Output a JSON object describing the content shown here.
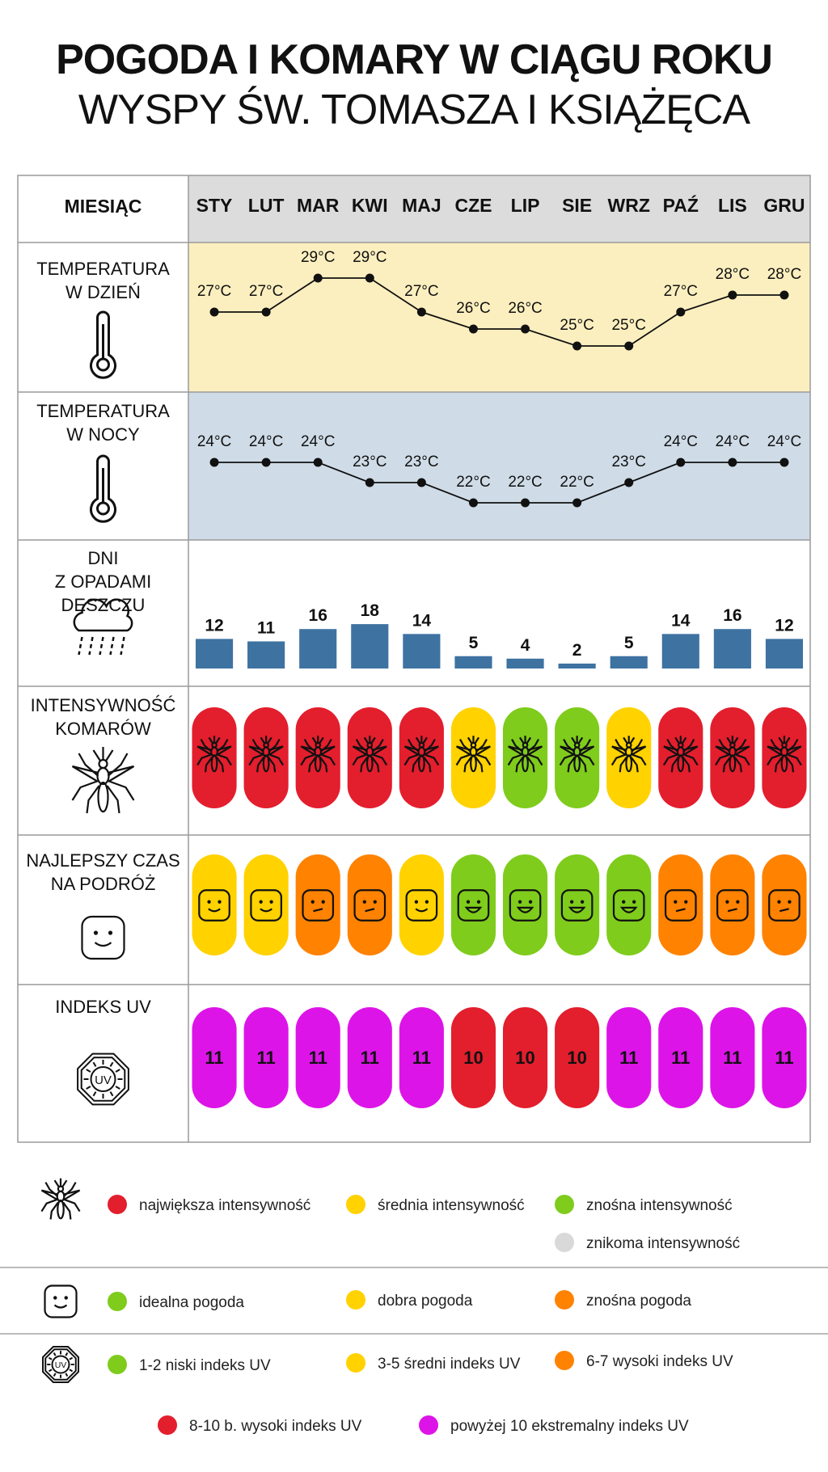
{
  "title": "POGODA I KOMARY W CIĄGU ROKU",
  "subtitle": "WYSPY ŚW. TOMASZA I KSIĄŻĘCA",
  "colors": {
    "day_bg": "#fcefbf",
    "night_bg": "#cfdce7",
    "header_bg": "#dcdcdc",
    "bar": "#3e72a1",
    "red": "#e31e2d",
    "yellow": "#ffd200",
    "green": "#7fcc1c",
    "orange": "#ff8200",
    "magenta": "#dd14e8",
    "gray": "#d9d9d9"
  },
  "row_labels": {
    "month": "MIESIĄC",
    "day_temp": [
      "TEMPERATURA",
      "W DZIEŃ"
    ],
    "night_temp": [
      "TEMPERATURA",
      "W NOCY"
    ],
    "rain": [
      "DNI",
      "Z OPADAMI",
      "DESZCZU"
    ],
    "mosquito": [
      "INTENSYWNOŚĆ",
      "KOMARÓW"
    ],
    "travel": [
      "NAJLEPSZY CZAS",
      "NA PODRÓŻ"
    ],
    "uv": [
      "INDEKS UV"
    ]
  },
  "chart_data": {
    "type": "table",
    "months": [
      "STY",
      "LUT",
      "MAR",
      "KWI",
      "MAJ",
      "CZE",
      "LIP",
      "SIE",
      "WRZ",
      "PAŹ",
      "LIS",
      "GRU"
    ],
    "day_temperature": {
      "type": "line",
      "unit": "°C",
      "values": [
        27,
        27,
        29,
        29,
        27,
        26,
        26,
        25,
        25,
        27,
        28,
        28
      ]
    },
    "night_temperature": {
      "type": "line",
      "unit": "°C",
      "values": [
        24,
        24,
        24,
        23,
        23,
        22,
        22,
        22,
        23,
        24,
        24,
        24
      ]
    },
    "rain_days": {
      "type": "bar",
      "values": [
        12,
        11,
        16,
        18,
        14,
        5,
        4,
        2,
        5,
        14,
        16,
        12
      ]
    },
    "mosquito_intensity": [
      "red",
      "red",
      "red",
      "red",
      "red",
      "yellow",
      "green",
      "green",
      "yellow",
      "red",
      "red",
      "red"
    ],
    "best_travel_time": [
      "yellow",
      "yellow",
      "orange",
      "orange",
      "yellow",
      "green",
      "green",
      "green",
      "green",
      "orange",
      "orange",
      "orange"
    ],
    "uv_index": {
      "values": [
        11,
        11,
        11,
        11,
        11,
        10,
        10,
        10,
        11,
        11,
        11,
        11
      ],
      "colors": [
        "magenta",
        "magenta",
        "magenta",
        "magenta",
        "magenta",
        "red",
        "red",
        "red",
        "magenta",
        "magenta",
        "magenta",
        "magenta"
      ]
    }
  },
  "legend": {
    "mosquito": [
      {
        "color": "red",
        "label": "największa intensywność"
      },
      {
        "color": "yellow",
        "label": "średnia intensywność"
      },
      {
        "color": "green",
        "label": "znośna intensywność"
      },
      {
        "color": "gray",
        "label": "znikoma intensywność"
      }
    ],
    "weather": [
      {
        "color": "green",
        "label": "idealna pogoda"
      },
      {
        "color": "yellow",
        "label": "dobra pogoda"
      },
      {
        "color": "orange",
        "label": "znośna pogoda"
      }
    ],
    "uv": [
      {
        "color": "green",
        "label": "1-2 niski indeks UV"
      },
      {
        "color": "yellow",
        "label": "3-5 średni indeks UV"
      },
      {
        "color": "orange",
        "label": "6-7 wysoki indeks UV"
      },
      {
        "color": "red",
        "label": "8-10 b. wysoki indeks UV"
      },
      {
        "color": "magenta",
        "label": "powyżej 10 ekstremalny indeks UV"
      }
    ],
    "uv_icon_text": "UV"
  }
}
